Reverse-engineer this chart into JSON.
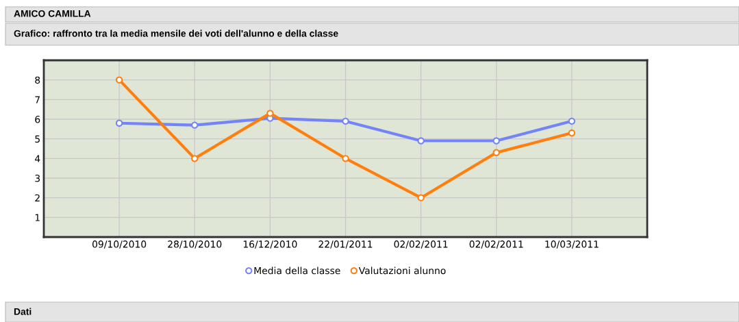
{
  "chart_data": {
    "type": "line",
    "title": "AMICO CAMILLA",
    "subtitle": "Grafico: raffronto tra la media mensile dei voti dell'alunno e della classe",
    "annotations": [
      "Dati"
    ],
    "categories": [
      "09/10/2010",
      "28/10/2010",
      "16/12/2010",
      "22/01/2011",
      "02/02/2011",
      "02/02/2011",
      "10/03/2011"
    ],
    "series": [
      {
        "name": "Media della classe",
        "color": "#7383f8",
        "values": [
          5.8,
          5.7,
          6.05,
          5.9,
          4.9,
          4.9,
          5.9
        ]
      },
      {
        "name": "Valutazioni alunno",
        "color": "#ff7f0e",
        "values": [
          8,
          4,
          6.3,
          4,
          2,
          4.3,
          5.3
        ]
      }
    ],
    "ylim": [
      0,
      9
    ],
    "yticks": [
      1,
      2,
      3,
      4,
      5,
      6,
      7,
      8
    ],
    "grid": true,
    "legend": "bottom",
    "marker": "circle",
    "line_style": "solid"
  }
}
